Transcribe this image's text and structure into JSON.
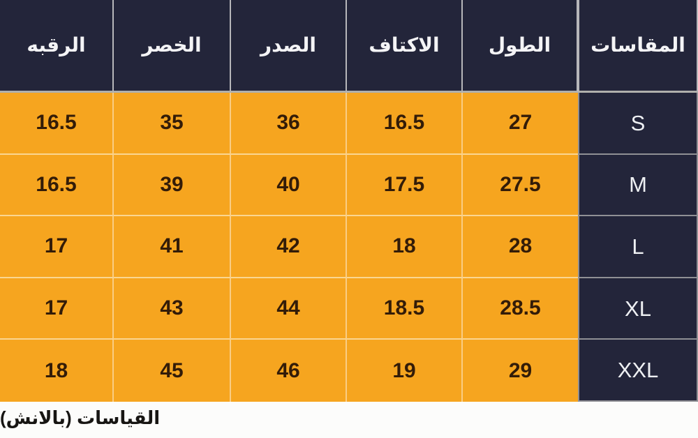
{
  "chart_data": {
    "type": "table",
    "direction": "rtl",
    "columns": [
      "المقاسات",
      "الطول",
      "الاكتاف",
      "الصدر",
      "الخصر",
      "الرقبه"
    ],
    "column_keys": [
      "size",
      "length",
      "shoulders",
      "chest",
      "waist",
      "neck"
    ],
    "rows": [
      {
        "size": "S",
        "length": "27",
        "shoulders": "16.5",
        "chest": "36",
        "waist": "35",
        "neck": "16.5"
      },
      {
        "size": "M",
        "length": "27.5",
        "shoulders": "17.5",
        "chest": "40",
        "waist": "39",
        "neck": "16.5"
      },
      {
        "size": "L",
        "length": "28",
        "shoulders": "18",
        "chest": "42",
        "waist": "41",
        "neck": "17"
      },
      {
        "size": "XL",
        "length": "28.5",
        "shoulders": "18.5",
        "chest": "44",
        "waist": "43",
        "neck": "17"
      },
      {
        "size": "XXL",
        "length": "29",
        "shoulders": "19",
        "chest": "46",
        "waist": "45",
        "neck": "18"
      }
    ],
    "legend": "none",
    "grid": "cell borders"
  },
  "footer": {
    "caption": "القياسات (بالانش)"
  },
  "colors": {
    "header_bg": "#23253a",
    "row_bg": "#f6a51f",
    "size_column_bg": "#23253a",
    "header_text": "#f4f4f6",
    "number_text": "#331c08",
    "grey_border": "#909095",
    "page_bg": "#fbfbfa"
  }
}
